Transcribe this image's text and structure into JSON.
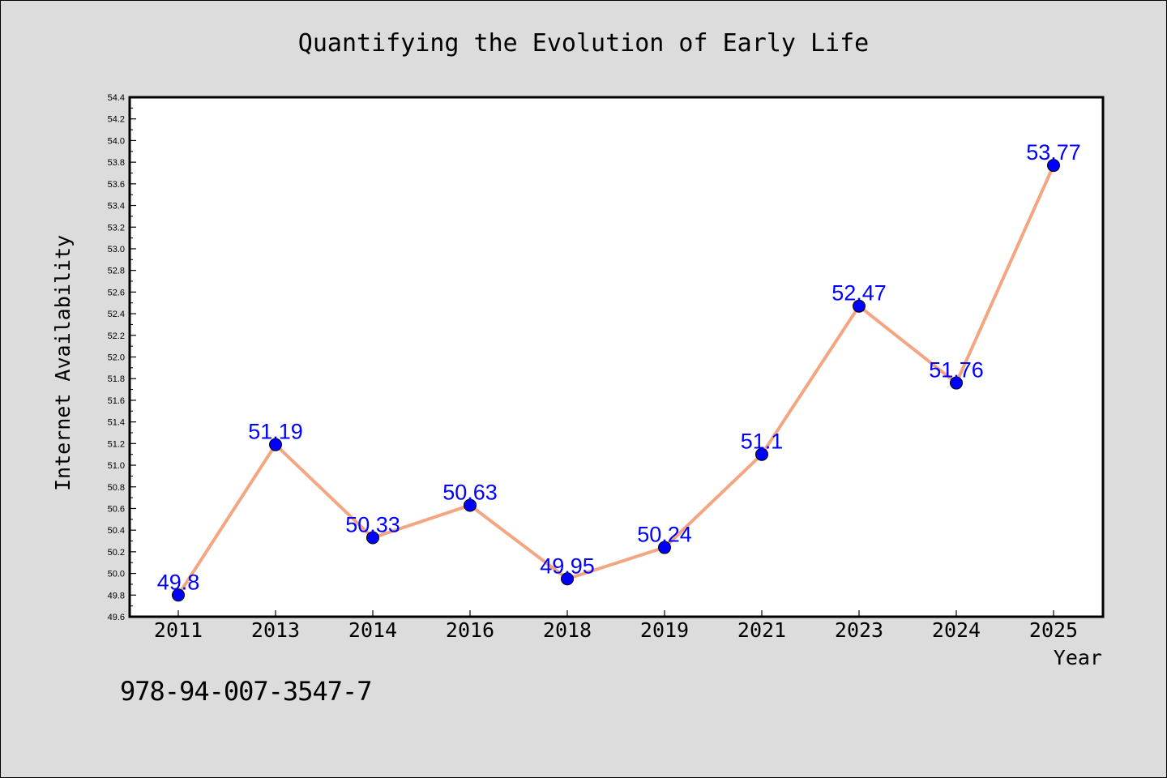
{
  "chart_data": {
    "type": "line",
    "title": "Quantifying the Evolution of Early Life",
    "xlabel": "Year",
    "ylabel": "Internet Availability",
    "categories": [
      "2011",
      "2013",
      "2014",
      "2016",
      "2018",
      "2019",
      "2021",
      "2023",
      "2024",
      "2025"
    ],
    "values": [
      49.8,
      51.19,
      50.33,
      50.63,
      49.95,
      50.24,
      51.1,
      52.47,
      51.76,
      53.77
    ],
    "data_labels": [
      "49.8",
      "51.19",
      "50.33",
      "50.63",
      "49.95",
      "50.24",
      "51.1",
      "52.47",
      "51.76",
      "53.77"
    ],
    "ylim": [
      49.6,
      54.4
    ],
    "ytick_step": 0.2,
    "line_color": "#f4a582",
    "marker_color": "#0000ff",
    "label_color": "#0000ff",
    "grid": false,
    "legend": "none"
  },
  "footer": {
    "code": "978-94-007-3547-7"
  }
}
